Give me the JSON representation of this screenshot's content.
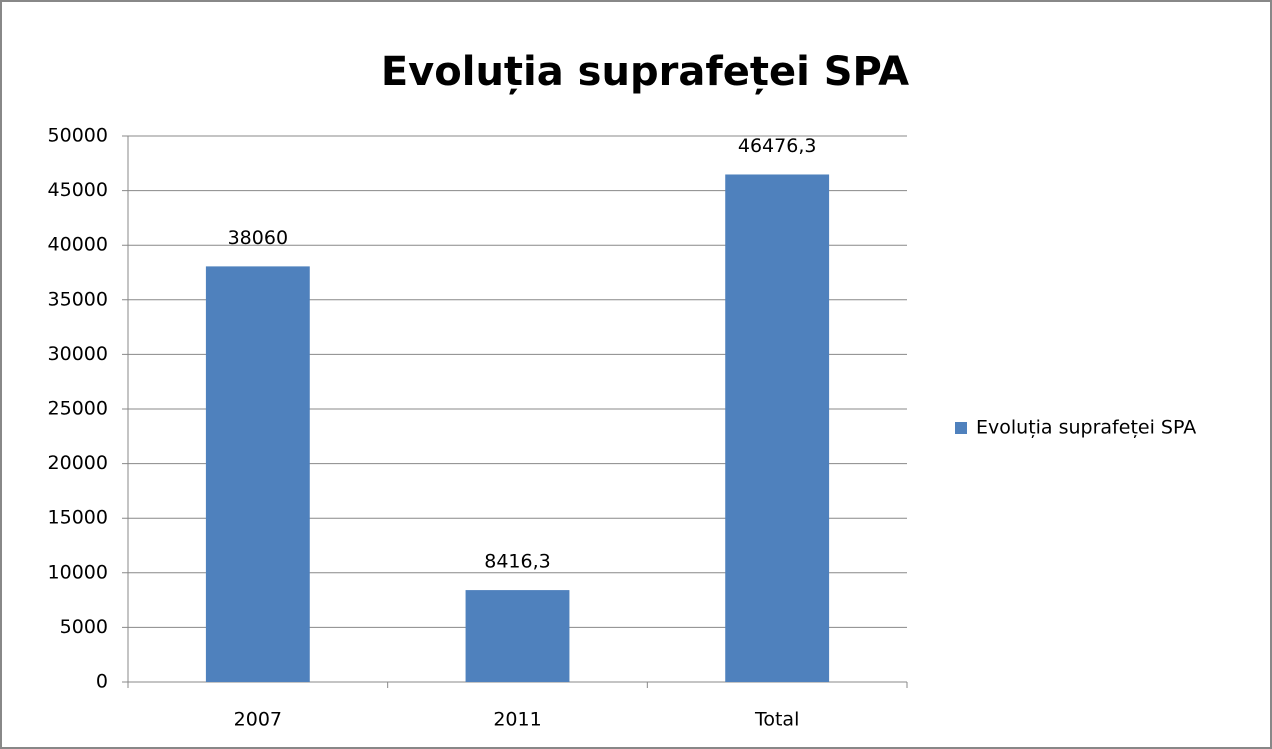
{
  "chart_data": {
    "type": "bar",
    "title": "Evoluția suprafeței SPA",
    "categories": [
      "2007",
      "2011",
      "Total"
    ],
    "series": [
      {
        "name": "Evoluția suprafeței SPA",
        "color": "#4f81bd",
        "values": [
          38060,
          8416.3,
          46476.3
        ],
        "value_labels": [
          "38060",
          "8416,3",
          "46476,3"
        ]
      }
    ],
    "ylim": [
      0,
      50000
    ],
    "yticks": [
      0,
      5000,
      10000,
      15000,
      20000,
      25000,
      30000,
      35000,
      40000,
      45000,
      50000
    ],
    "grid": true,
    "legend": "right"
  }
}
